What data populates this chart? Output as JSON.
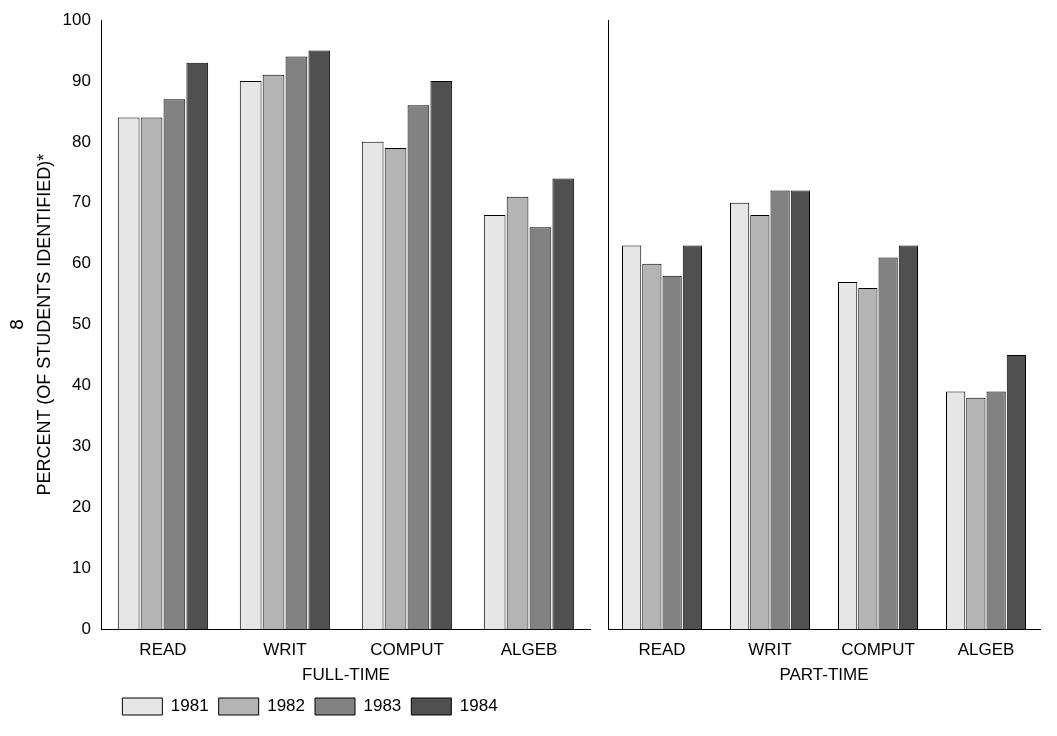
{
  "chart_data": [
    {
      "type": "bar",
      "xlabel": "FULL-TIME",
      "ylabel": "PERCENT (OF STUDENTS IDENTIFIED)*",
      "categories": [
        "READ",
        "WRIT",
        "COMPUT",
        "ALGEB"
      ],
      "ylim": [
        0,
        100
      ],
      "yticks": [
        0,
        10,
        20,
        30,
        40,
        50,
        60,
        70,
        80,
        90,
        100
      ],
      "grid": false,
      "legend": "bottom",
      "annotations": [
        "8"
      ],
      "series": [
        {
          "name": "1981",
          "color": "#e6e6e6",
          "values": [
            84,
            90,
            80,
            68
          ]
        },
        {
          "name": "1982",
          "color": "#b4b4b4",
          "values": [
            84,
            91,
            79,
            71
          ]
        },
        {
          "name": "1983",
          "color": "#828282",
          "values": [
            87,
            94,
            86,
            66
          ]
        },
        {
          "name": "1984",
          "color": "#505050",
          "values": [
            93,
            95,
            90,
            74
          ]
        }
      ]
    },
    {
      "type": "bar",
      "xlabel": "PART-TIME",
      "categories": [
        "READ",
        "WRIT",
        "COMPUT",
        "ALGEB"
      ],
      "ylim": [
        0,
        100
      ],
      "yticks": [
        0,
        10,
        20,
        30,
        40,
        50,
        60,
        70,
        80,
        90,
        100
      ],
      "grid": false,
      "legend": false,
      "tick_labels": "x",
      "series": [
        {
          "color": "#e6e6e6",
          "values": [
            63,
            70,
            57,
            39
          ]
        },
        {
          "color": "#b4b4b4",
          "values": [
            60,
            68,
            56,
            38
          ]
        },
        {
          "color": "#828282",
          "values": [
            58,
            72,
            61,
            39
          ]
        },
        {
          "color": "#505050",
          "values": [
            63,
            72,
            63,
            45
          ]
        }
      ]
    }
  ]
}
